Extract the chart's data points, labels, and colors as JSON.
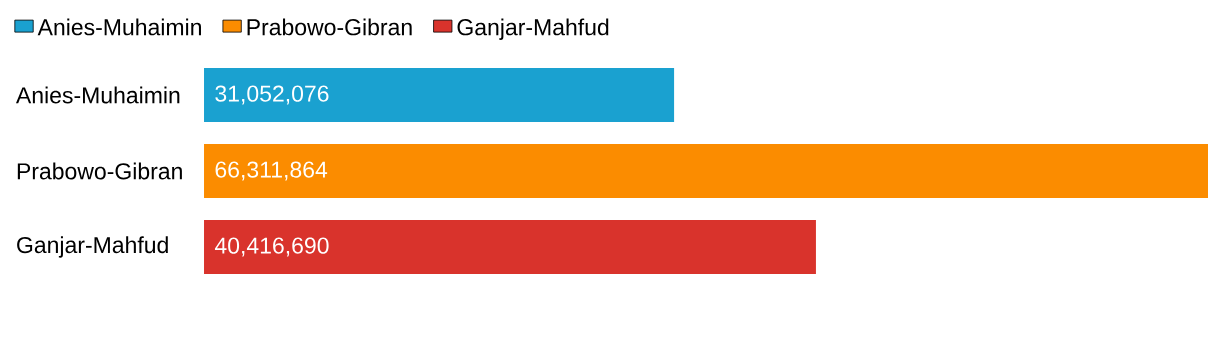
{
  "chart_data": {
    "type": "bar",
    "orientation": "horizontal",
    "stacked": true,
    "categories": [
      "Anies-Muhaimin",
      "Prabowo-Gibran",
      "Ganjar-Mahfud"
    ],
    "series": [
      {
        "name": "Anies-Muhaimin",
        "color": "#1aa1d0",
        "values": [
          31052076,
          null,
          null
        ],
        "value_labels": [
          "31,052,076",
          null,
          null
        ]
      },
      {
        "name": "Prabowo-Gibran",
        "color": "#fb8c00",
        "values": [
          null,
          66311864,
          null
        ],
        "value_labels": [
          null,
          "66,311,864",
          null
        ]
      },
      {
        "name": "Ganjar-Mahfud",
        "color": "#d9332c",
        "values": [
          null,
          null,
          40416690
        ],
        "value_labels": [
          null,
          null,
          "40,416,690"
        ]
      }
    ],
    "legend": "top left",
    "tick_labels": "y"
  }
}
